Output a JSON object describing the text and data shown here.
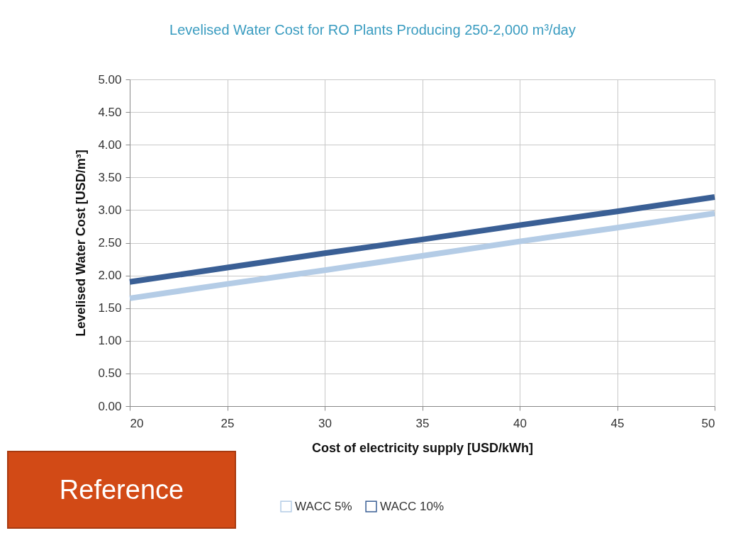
{
  "chart_data": {
    "type": "line",
    "title": "Levelised Water Cost for RO Plants Producing 250-2,000 m³/day",
    "xlabel": "Cost of electricity supply [USD/kWh]",
    "ylabel": "Levelised Water Cost [USD/m³]",
    "x": [
      20,
      25,
      30,
      35,
      40,
      45,
      50
    ],
    "series": [
      {
        "name": "WACC 5%",
        "color": "#b4cce6",
        "values": [
          1.65,
          1.87,
          2.08,
          2.3,
          2.52,
          2.73,
          2.95
        ]
      },
      {
        "name": "WACC 10%",
        "color": "#3a5f95",
        "values": [
          1.9,
          2.12,
          2.34,
          2.55,
          2.77,
          2.98,
          3.2
        ]
      }
    ],
    "xlim": [
      20,
      50
    ],
    "xticks": [
      20,
      25,
      30,
      35,
      40,
      45,
      50
    ],
    "ylim": [
      0,
      5
    ],
    "yticks": [
      {
        "value": 0,
        "label": "0.00"
      },
      {
        "value": 0.5,
        "label": "0.50"
      },
      {
        "value": 1,
        "label": "1.00"
      },
      {
        "value": 1.5,
        "label": "1.50"
      },
      {
        "value": 2,
        "label": "2.00"
      },
      {
        "value": 2.5,
        "label": "2.50"
      },
      {
        "value": 3,
        "label": "3.00"
      },
      {
        "value": 3.5,
        "label": "3.50"
      },
      {
        "value": 4,
        "label": "4.00"
      },
      {
        "value": 4.5,
        "label": "4.50"
      },
      {
        "value": 5,
        "label": "5.00"
      }
    ],
    "grid": true,
    "legend": "bottom",
    "marker": "none",
    "line_style": "solid",
    "annotations": [
      "Reference"
    ]
  }
}
